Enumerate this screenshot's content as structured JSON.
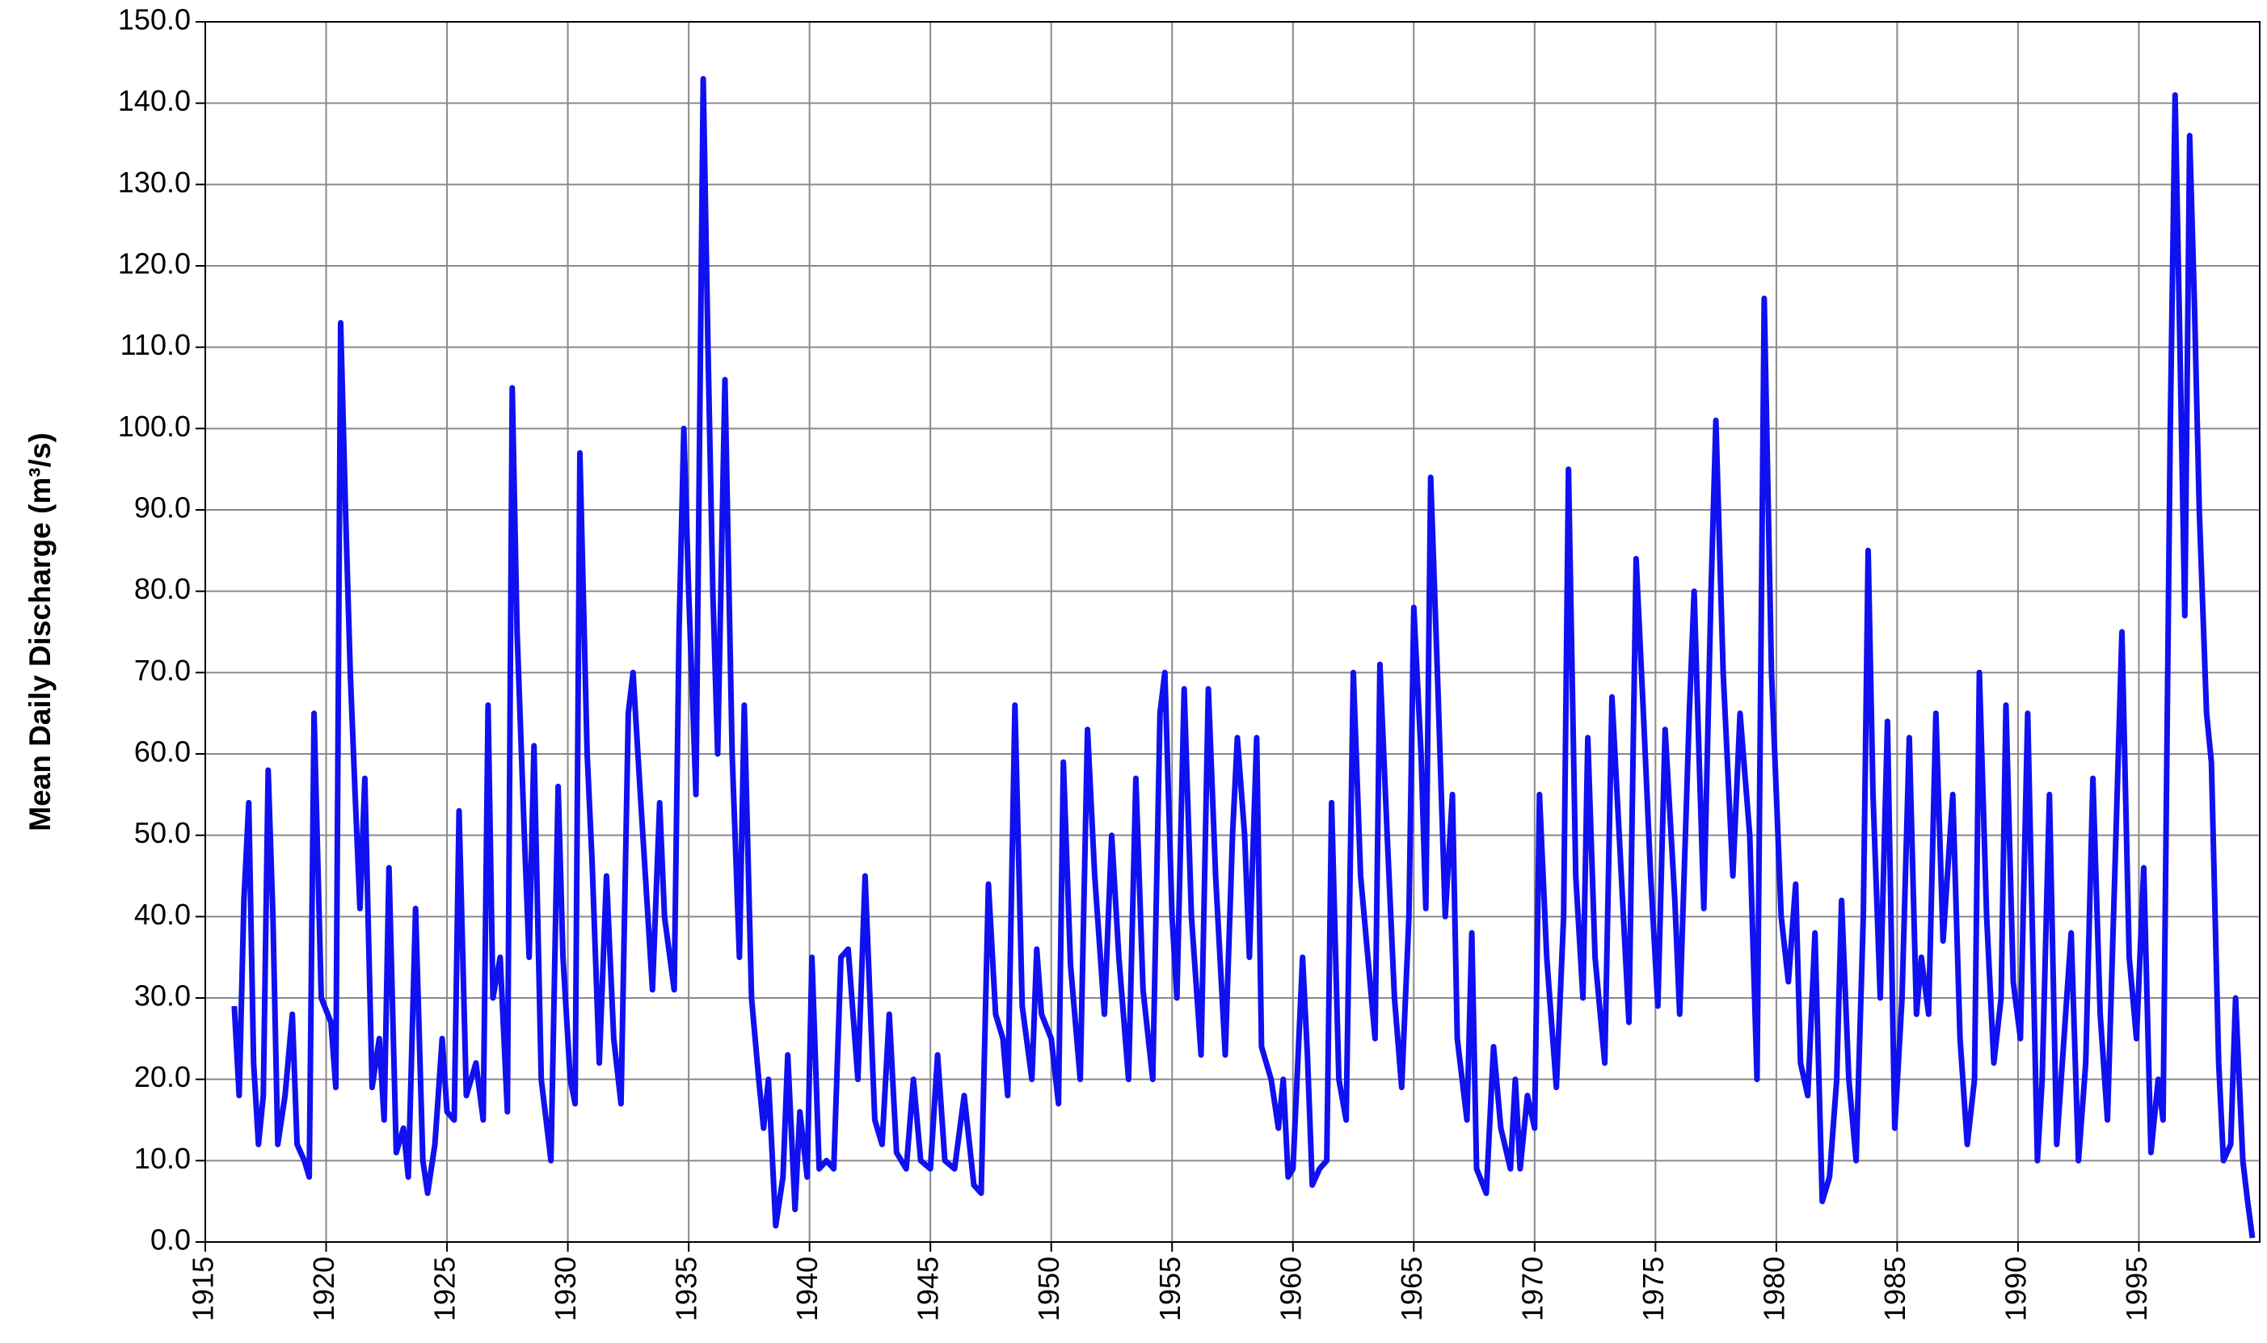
{
  "chart_data": {
    "type": "line",
    "y_label": "Mean Daily Discharge (m³/s)",
    "color": "#1010f0",
    "grid": true,
    "xlim": [
      1915,
      2000
    ],
    "xticks": [
      1915,
      1920,
      1925,
      1930,
      1935,
      1940,
      1945,
      1950,
      1955,
      1960,
      1965,
      1970,
      1975,
      1980,
      1985,
      1990,
      1995
    ],
    "ylim": [
      0,
      150
    ],
    "yticks": [
      {
        "value": 0,
        "label": "0.0"
      },
      {
        "value": 10,
        "label": "10.0"
      },
      {
        "value": 20,
        "label": "20.0"
      },
      {
        "value": 30,
        "label": "30.0"
      },
      {
        "value": 40,
        "label": "40.0"
      },
      {
        "value": 50,
        "label": "50.0"
      },
      {
        "value": 60,
        "label": "60.0"
      },
      {
        "value": 70,
        "label": "70.0"
      },
      {
        "value": 80,
        "label": "80.0"
      },
      {
        "value": 90,
        "label": "90.0"
      },
      {
        "value": 100,
        "label": "100.0"
      },
      {
        "value": 110,
        "label": "110.0"
      },
      {
        "value": 120,
        "label": "120.0"
      },
      {
        "value": 130,
        "label": "130.0"
      },
      {
        "value": 140,
        "label": "140.0"
      },
      {
        "value": 150,
        "label": "150.0"
      }
    ],
    "x": [
      1916.2,
      1916.4,
      1916.6,
      1916.8,
      1917.0,
      1917.2,
      1917.4,
      1917.6,
      1917.8,
      1918.0,
      1918.3,
      1918.6,
      1918.8,
      1919.1,
      1919.3,
      1919.5,
      1919.8,
      1920.2,
      1920.4,
      1920.6,
      1920.8,
      1921.0,
      1921.2,
      1921.4,
      1921.6,
      1921.9,
      1922.2,
      1922.4,
      1922.6,
      1922.9,
      1923.2,
      1923.4,
      1923.7,
      1924.0,
      1924.2,
      1924.5,
      1924.8,
      1925.0,
      1925.3,
      1925.5,
      1925.8,
      1926.2,
      1926.5,
      1926.7,
      1926.9,
      1927.2,
      1927.5,
      1927.7,
      1927.9,
      1928.2,
      1928.4,
      1928.6,
      1928.9,
      1929.1,
      1929.3,
      1929.6,
      1929.8,
      1930.1,
      1930.3,
      1930.5,
      1930.8,
      1931.0,
      1931.3,
      1931.6,
      1931.9,
      1932.2,
      1932.5,
      1932.7,
      1933.0,
      1933.5,
      1933.8,
      1934.0,
      1934.4,
      1934.6,
      1934.8,
      1935.0,
      1935.3,
      1935.6,
      1935.8,
      1936.0,
      1936.2,
      1936.5,
      1936.8,
      1937.1,
      1937.3,
      1937.6,
      1937.9,
      1938.1,
      1938.3,
      1938.6,
      1938.9,
      1939.1,
      1939.4,
      1939.6,
      1939.9,
      1940.1,
      1940.4,
      1940.7,
      1941.0,
      1941.3,
      1941.6,
      1942.0,
      1942.3,
      1942.7,
      1943.0,
      1943.3,
      1943.6,
      1944.0,
      1944.3,
      1944.6,
      1945.0,
      1945.3,
      1945.6,
      1946.0,
      1946.4,
      1946.8,
      1947.1,
      1947.4,
      1947.7,
      1948.0,
      1948.2,
      1948.5,
      1948.8,
      1949.2,
      1949.4,
      1949.6,
      1950.0,
      1950.3,
      1950.5,
      1950.8,
      1951.2,
      1951.5,
      1951.8,
      1952.2,
      1952.5,
      1952.8,
      1953.2,
      1953.5,
      1953.8,
      1954.2,
      1954.5,
      1954.7,
      1955.0,
      1955.2,
      1955.5,
      1955.8,
      1956.2,
      1956.5,
      1956.8,
      1957.2,
      1957.5,
      1957.7,
      1958.0,
      1958.2,
      1958.5,
      1958.7,
      1959.1,
      1959.4,
      1959.6,
      1959.8,
      1960.0,
      1960.4,
      1960.6,
      1960.8,
      1961.1,
      1961.4,
      1961.6,
      1961.9,
      1962.2,
      1962.5,
      1962.8,
      1963.1,
      1963.4,
      1963.6,
      1963.9,
      1964.2,
      1964.5,
      1964.8,
      1965.0,
      1965.3,
      1965.5,
      1965.7,
      1966.0,
      1966.3,
      1966.6,
      1966.8,
      1967.2,
      1967.4,
      1967.6,
      1968.0,
      1968.3,
      1968.6,
      1969.0,
      1969.2,
      1969.4,
      1969.7,
      1970.0,
      1970.2,
      1970.5,
      1970.9,
      1971.2,
      1971.4,
      1971.7,
      1972.0,
      1972.2,
      1972.5,
      1972.9,
      1973.2,
      1973.5,
      1973.9,
      1974.2,
      1974.5,
      1974.8,
      1975.1,
      1975.4,
      1975.8,
      1976.0,
      1976.4,
      1976.6,
      1976.8,
      1977.0,
      1977.3,
      1977.5,
      1977.8,
      1978.2,
      1978.5,
      1978.9,
      1979.2,
      1979.5,
      1979.8,
      1980.2,
      1980.5,
      1980.8,
      1981.0,
      1981.3,
      1981.6,
      1981.9,
      1982.2,
      1982.5,
      1982.7,
      1983.0,
      1983.3,
      1983.6,
      1983.8,
      1984.0,
      1984.3,
      1984.6,
      1984.9,
      1985.2,
      1985.5,
      1985.8,
      1986.0,
      1986.3,
      1986.6,
      1986.9,
      1987.3,
      1987.6,
      1987.9,
      1988.2,
      1988.4,
      1988.7,
      1989.0,
      1989.3,
      1989.5,
      1989.8,
      1990.1,
      1990.4,
      1990.8,
      1991.0,
      1991.3,
      1991.6,
      1991.9,
      1992.2,
      1992.5,
      1992.8,
      1993.1,
      1993.4,
      1993.7,
      1994.0,
      1994.3,
      1994.6,
      1994.9,
      1995.2,
      1995.5,
      1995.8,
      1996.0,
      1996.3,
      1996.5,
      1996.7,
      1996.9,
      1997.1,
      1997.3,
      1997.5,
      1997.8,
      1998.0,
      1998.3,
      1998.5,
      1998.8,
      1999.0,
      1999.3,
      1999.5,
      1999.7
    ],
    "values": [
      29,
      18,
      42,
      54,
      22,
      12,
      18,
      58,
      40,
      12,
      18,
      28,
      12,
      10,
      8,
      65,
      30,
      27,
      19,
      113,
      90,
      70,
      55,
      41,
      57,
      19,
      25,
      15,
      46,
      11,
      14,
      8,
      41,
      10,
      6,
      12,
      25,
      16,
      15,
      53,
      18,
      22,
      15,
      66,
      30,
      35,
      16,
      105,
      75,
      50,
      35,
      61,
      20,
      15,
      10,
      56,
      35,
      20,
      17,
      97,
      60,
      47,
      22,
      45,
      25,
      17,
      65,
      70,
      55,
      31,
      54,
      40,
      31,
      75,
      100,
      80,
      55,
      143,
      110,
      80,
      60,
      106,
      60,
      35,
      66,
      30,
      20,
      14,
      20,
      2,
      8,
      23,
      4,
      16,
      8,
      35,
      9,
      10,
      9,
      35,
      36,
      20,
      45,
      15,
      12,
      28,
      11,
      9,
      20,
      10,
      9,
      23,
      10,
      9,
      18,
      7,
      6,
      44,
      28,
      25,
      18,
      66,
      29,
      20,
      36,
      28,
      25,
      17,
      59,
      34,
      20,
      63,
      45,
      28,
      50,
      35,
      20,
      57,
      31,
      20,
      65,
      70,
      40,
      30,
      68,
      40,
      23,
      68,
      45,
      23,
      50,
      62,
      50,
      35,
      62,
      24,
      20,
      14,
      20,
      8,
      9,
      35,
      23,
      7,
      9,
      10,
      54,
      20,
      15,
      70,
      45,
      35,
      25,
      71,
      50,
      30,
      19,
      40,
      78,
      60,
      41,
      94,
      68,
      40,
      55,
      25,
      15,
      38,
      9,
      6,
      24,
      14,
      9,
      20,
      9,
      18,
      14,
      55,
      35,
      19,
      40,
      95,
      45,
      30,
      62,
      35,
      22,
      67,
      50,
      27,
      84,
      65,
      45,
      29,
      63,
      42,
      28,
      65,
      80,
      60,
      41,
      80,
      101,
      70,
      45,
      65,
      50,
      20,
      116,
      70,
      40,
      32,
      44,
      22,
      18,
      38,
      5,
      8,
      20,
      42,
      20,
      10,
      40,
      85,
      55,
      30,
      64,
      14,
      30,
      62,
      28,
      35,
      28,
      65,
      37,
      55,
      25,
      12,
      20,
      70,
      40,
      22,
      30,
      66,
      32,
      25,
      65,
      10,
      20,
      55,
      12,
      25,
      38,
      10,
      22,
      57,
      28,
      15,
      45,
      75,
      35,
      25,
      46,
      11,
      20,
      15,
      100,
      141,
      110,
      77,
      136,
      115,
      90,
      65,
      59,
      22,
      10,
      12,
      30,
      10,
      5,
      0.5
    ]
  }
}
